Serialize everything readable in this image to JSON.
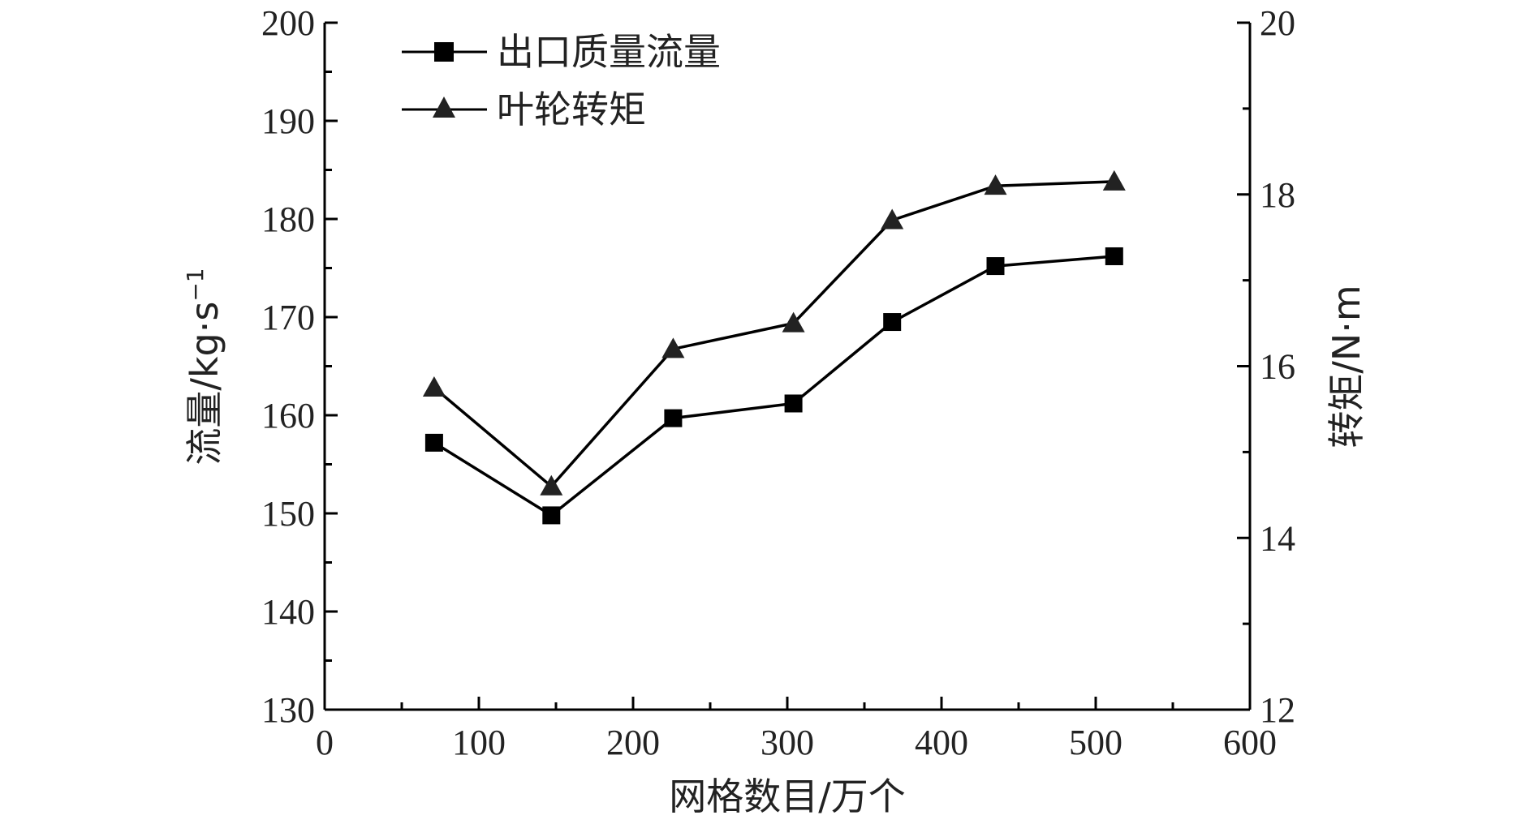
{
  "chart_data": {
    "type": "line",
    "x_label": "网格数目/万个",
    "y_left_label_main": "流量/kg·s",
    "y_left_label_sup": "−1",
    "y_right_label": "转矩/N·m",
    "x_range": [
      0,
      600
    ],
    "y_left_range": [
      130,
      200
    ],
    "y_right_range": [
      12,
      20
    ],
    "x_ticks": [
      "0",
      "100",
      "200",
      "300",
      "400",
      "500",
      "600"
    ],
    "y_left_ticks": [
      "130",
      "140",
      "150",
      "160",
      "170",
      "180",
      "190",
      "200"
    ],
    "y_right_ticks": [
      "12",
      "14",
      "16",
      "18",
      "20"
    ],
    "legend_position": "top-left",
    "series": [
      {
        "name": "出口质量流量",
        "axis": "left",
        "marker": "square",
        "color": "#000000",
        "x": [
          71,
          147,
          226,
          304,
          368,
          435,
          512
        ],
        "y": [
          157.2,
          149.8,
          159.7,
          161.2,
          169.5,
          175.2,
          176.2
        ]
      },
      {
        "name": "叶轮转矩",
        "axis": "right",
        "marker": "triangle",
        "color": "#222222",
        "x": [
          71,
          147,
          226,
          304,
          368,
          435,
          512
        ],
        "y": [
          15.75,
          14.6,
          16.2,
          16.5,
          17.7,
          18.1,
          18.15
        ]
      }
    ]
  }
}
